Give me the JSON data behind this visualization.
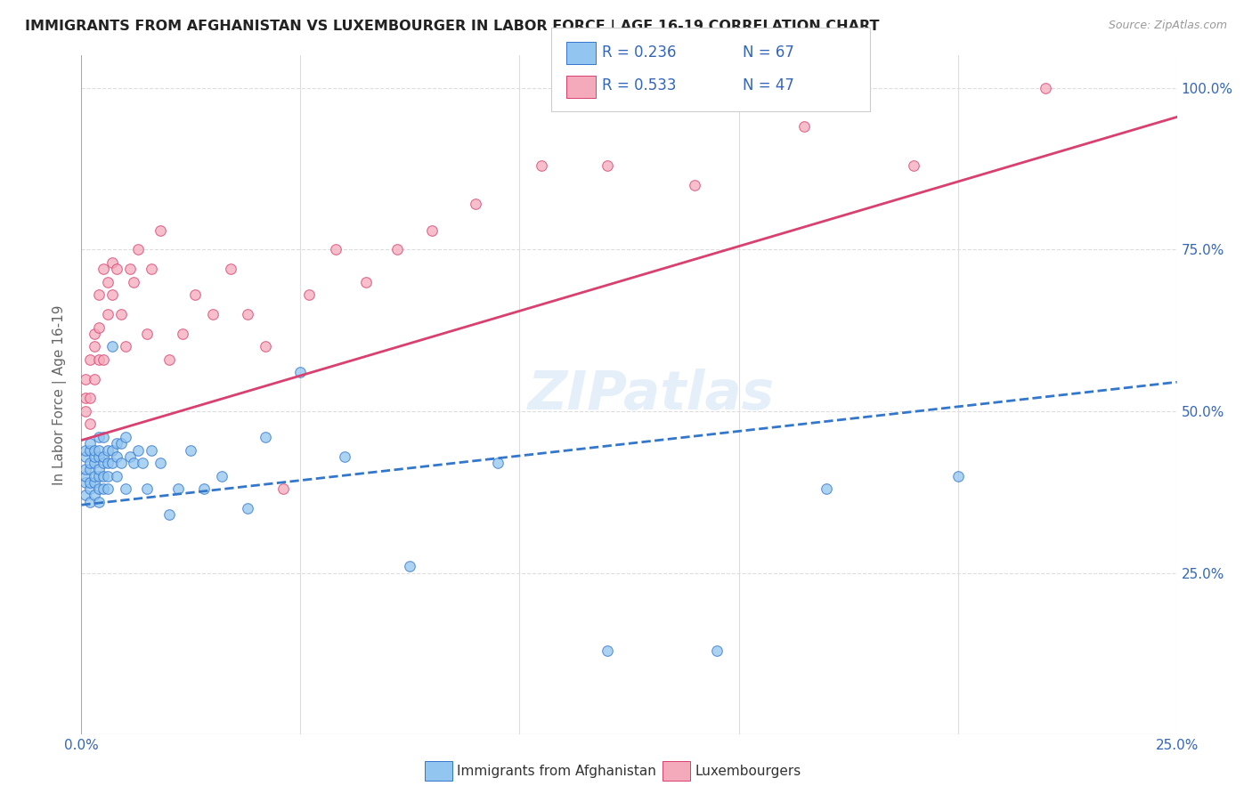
{
  "title": "IMMIGRANTS FROM AFGHANISTAN VS LUXEMBOURGER IN LABOR FORCE | AGE 16-19 CORRELATION CHART",
  "source": "Source: ZipAtlas.com",
  "ylabel_label": "In Labor Force | Age 16-19",
  "xaxis_range": [
    0.0,
    0.25
  ],
  "yaxis_range": [
    0.0,
    1.05
  ],
  "legend_r1": "R = 0.236",
  "legend_n1": "N = 67",
  "legend_r2": "R = 0.533",
  "legend_n2": "N = 47",
  "color_afghanistan": "#92C5F0",
  "color_luxembourg": "#F5AABB",
  "color_line_afghanistan": "#3377CC",
  "color_line_luxembourg": "#D94070",
  "watermark": "ZIPatlas",
  "afghanistan_x": [
    0.001,
    0.001,
    0.001,
    0.001,
    0.001,
    0.001,
    0.002,
    0.002,
    0.002,
    0.002,
    0.002,
    0.002,
    0.002,
    0.003,
    0.003,
    0.003,
    0.003,
    0.003,
    0.003,
    0.004,
    0.004,
    0.004,
    0.004,
    0.004,
    0.004,
    0.004,
    0.005,
    0.005,
    0.005,
    0.005,
    0.005,
    0.006,
    0.006,
    0.006,
    0.006,
    0.007,
    0.007,
    0.007,
    0.008,
    0.008,
    0.008,
    0.009,
    0.009,
    0.01,
    0.01,
    0.011,
    0.012,
    0.013,
    0.014,
    0.015,
    0.016,
    0.018,
    0.02,
    0.022,
    0.025,
    0.028,
    0.032,
    0.038,
    0.042,
    0.05,
    0.06,
    0.075,
    0.095,
    0.12,
    0.145,
    0.17,
    0.2
  ],
  "afghanistan_y": [
    0.37,
    0.39,
    0.4,
    0.41,
    0.43,
    0.44,
    0.36,
    0.38,
    0.39,
    0.41,
    0.42,
    0.44,
    0.45,
    0.37,
    0.39,
    0.4,
    0.42,
    0.43,
    0.44,
    0.36,
    0.38,
    0.4,
    0.41,
    0.43,
    0.44,
    0.46,
    0.38,
    0.4,
    0.42,
    0.43,
    0.46,
    0.38,
    0.4,
    0.42,
    0.44,
    0.42,
    0.44,
    0.6,
    0.4,
    0.43,
    0.45,
    0.42,
    0.45,
    0.38,
    0.46,
    0.43,
    0.42,
    0.44,
    0.42,
    0.38,
    0.44,
    0.42,
    0.34,
    0.38,
    0.44,
    0.38,
    0.4,
    0.35,
    0.46,
    0.56,
    0.43,
    0.26,
    0.42,
    0.13,
    0.13,
    0.38,
    0.4
  ],
  "luxembourg_x": [
    0.001,
    0.001,
    0.001,
    0.002,
    0.002,
    0.002,
    0.003,
    0.003,
    0.003,
    0.004,
    0.004,
    0.004,
    0.005,
    0.005,
    0.006,
    0.006,
    0.007,
    0.007,
    0.008,
    0.009,
    0.01,
    0.011,
    0.012,
    0.013,
    0.015,
    0.016,
    0.018,
    0.02,
    0.023,
    0.026,
    0.03,
    0.034,
    0.038,
    0.042,
    0.046,
    0.052,
    0.058,
    0.065,
    0.072,
    0.08,
    0.09,
    0.105,
    0.12,
    0.14,
    0.165,
    0.19,
    0.22
  ],
  "luxembourg_y": [
    0.5,
    0.52,
    0.55,
    0.48,
    0.52,
    0.58,
    0.55,
    0.6,
    0.62,
    0.58,
    0.63,
    0.68,
    0.58,
    0.72,
    0.65,
    0.7,
    0.68,
    0.73,
    0.72,
    0.65,
    0.6,
    0.72,
    0.7,
    0.75,
    0.62,
    0.72,
    0.78,
    0.58,
    0.62,
    0.68,
    0.65,
    0.72,
    0.65,
    0.6,
    0.38,
    0.68,
    0.75,
    0.7,
    0.75,
    0.78,
    0.82,
    0.88,
    0.88,
    0.85,
    0.94,
    0.88,
    1.0
  ],
  "line_af_x0": 0.0,
  "line_af_x1": 0.25,
  "line_af_y0": 0.355,
  "line_af_y1": 0.545,
  "line_lux_x0": 0.0,
  "line_lux_x1": 0.25,
  "line_lux_y0": 0.455,
  "line_lux_y1": 0.955
}
